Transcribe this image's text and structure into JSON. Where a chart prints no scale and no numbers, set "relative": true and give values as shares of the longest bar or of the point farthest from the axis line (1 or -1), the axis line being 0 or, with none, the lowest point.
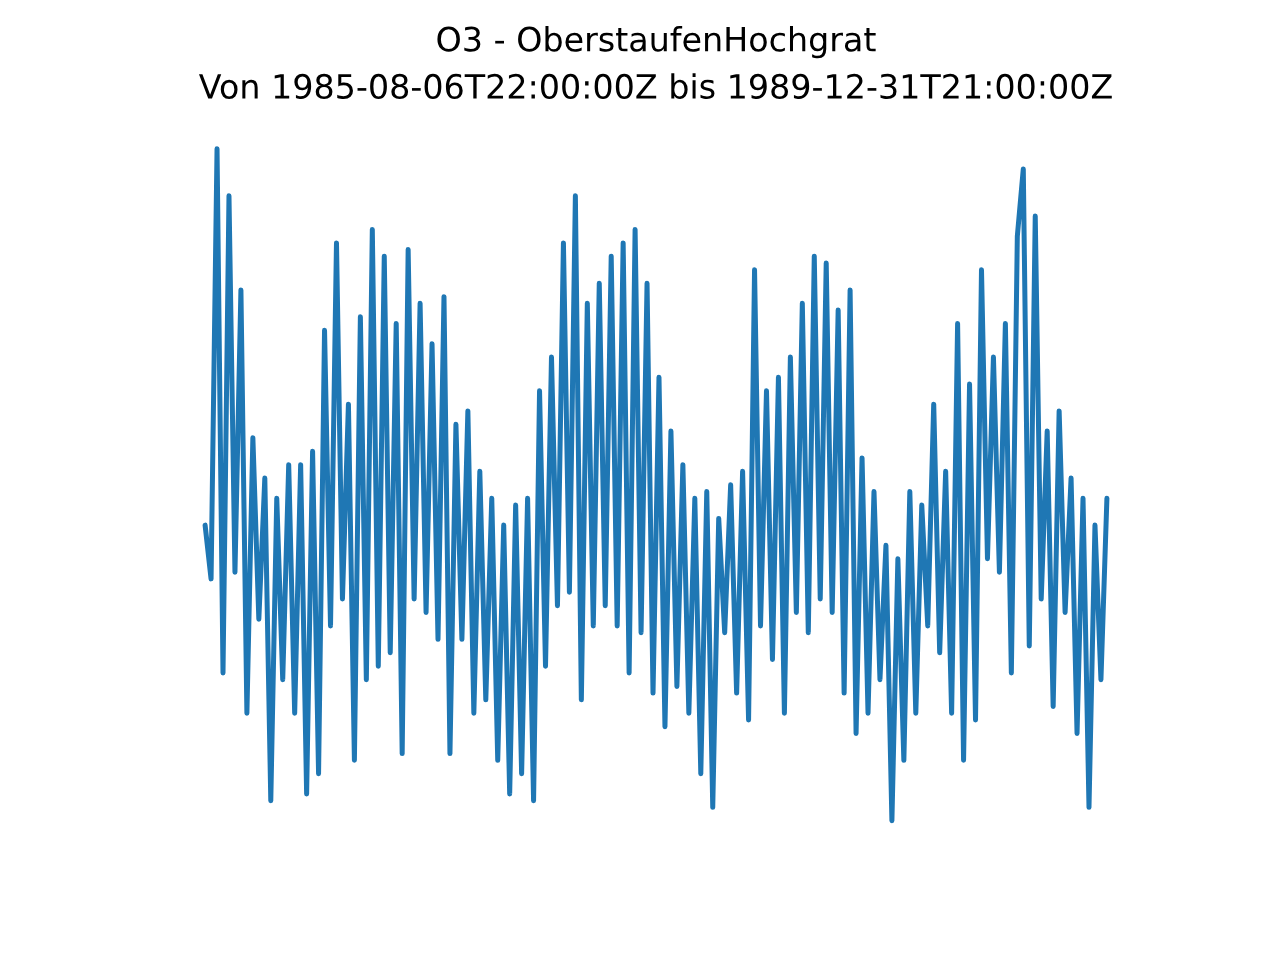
{
  "chart_data": {
    "type": "line",
    "title": "O3 - OberstaufenHochgrat",
    "subtitle": "Von 1985-08-06T22:00:00Z bis 1989-12-31T21:00:00Z",
    "relative": true,
    "color": "#1f77b4",
    "categories": [
      null,
      null,
      null,
      null,
      null,
      null,
      null,
      null,
      null,
      null,
      null,
      null,
      null,
      null,
      null,
      null,
      null,
      null,
      null,
      null,
      null,
      null,
      null,
      null,
      null,
      null,
      null,
      null,
      null,
      null,
      null,
      null,
      null,
      null,
      null,
      null,
      null,
      null,
      null,
      null,
      null,
      null,
      null,
      null,
      null,
      null,
      null,
      null,
      null,
      null,
      null,
      null,
      null,
      null,
      null,
      null,
      null,
      null,
      null,
      null,
      null,
      null,
      null,
      null,
      null,
      null,
      null,
      null,
      null,
      null,
      null,
      null,
      null,
      null,
      null,
      null,
      null,
      null,
      null,
      null,
      null,
      null,
      null,
      null,
      null,
      null,
      null,
      null,
      null,
      null,
      null,
      null,
      null,
      null,
      null,
      null,
      null,
      null,
      null,
      null,
      null,
      null,
      null,
      null,
      null,
      null,
      null,
      null,
      null,
      null,
      null,
      null,
      null,
      null,
      null,
      null,
      null,
      null,
      null,
      null,
      null,
      null,
      null,
      null,
      null,
      null,
      null,
      null,
      null,
      null,
      null,
      null,
      null,
      null,
      null,
      null,
      null,
      null,
      null,
      null,
      null,
      null,
      null,
      null,
      null,
      null,
      null,
      null,
      null,
      null,
      null,
      null
    ],
    "values": [
      0.44,
      0.36,
      1.0,
      0.22,
      0.93,
      0.37,
      0.79,
      0.16,
      0.57,
      0.3,
      0.51,
      0.03,
      0.48,
      0.21,
      0.53,
      0.16,
      0.53,
      0.04,
      0.55,
      0.07,
      0.73,
      0.29,
      0.86,
      0.33,
      0.62,
      0.09,
      0.75,
      0.21,
      0.88,
      0.23,
      0.84,
      0.25,
      0.74,
      0.1,
      0.85,
      0.33,
      0.77,
      0.31,
      0.71,
      0.27,
      0.78,
      0.1,
      0.59,
      0.27,
      0.61,
      0.16,
      0.52,
      0.18,
      0.48,
      0.09,
      0.44,
      0.04,
      0.47,
      0.07,
      0.48,
      0.03,
      0.64,
      0.23,
      0.69,
      0.32,
      0.86,
      0.34,
      0.93,
      0.18,
      0.77,
      0.29,
      0.8,
      0.32,
      0.84,
      0.29,
      0.86,
      0.22,
      0.88,
      0.28,
      0.8,
      0.19,
      0.66,
      0.14,
      0.58,
      0.2,
      0.53,
      0.16,
      0.48,
      0.07,
      0.49,
      0.02,
      0.45,
      0.28,
      0.5,
      0.19,
      0.52,
      0.15,
      0.82,
      0.29,
      0.64,
      0.24,
      0.66,
      0.16,
      0.69,
      0.31,
      0.77,
      0.28,
      0.84,
      0.33,
      0.83,
      0.31,
      0.76,
      0.19,
      0.79,
      0.13,
      0.54,
      0.16,
      0.49,
      0.21,
      0.41,
      0.0,
      0.39,
      0.09,
      0.49,
      0.16,
      0.47,
      0.29,
      0.62,
      0.25,
      0.52,
      0.16,
      0.74,
      0.09,
      0.65,
      0.15,
      0.82,
      0.39,
      0.69,
      0.37,
      0.74,
      0.22,
      0.87,
      0.97,
      0.26,
      0.9,
      0.33,
      0.58,
      0.17,
      0.61,
      0.31,
      0.51,
      0.13,
      0.48,
      0.02,
      0.44,
      0.21,
      0.48
    ]
  }
}
